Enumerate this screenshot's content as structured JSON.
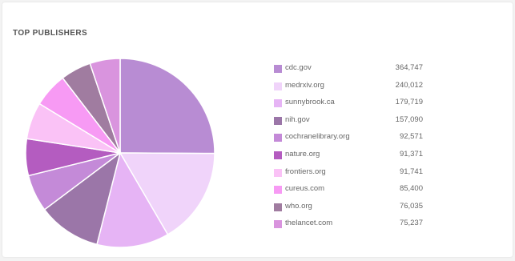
{
  "chart_data": {
    "type": "pie",
    "title": "TOP PUBLISHERS",
    "categories": [
      "cdc.gov",
      "medrxiv.org",
      "sunnybrook.ca",
      "nih.gov",
      "cochranelibrary.org",
      "nature.org",
      "frontiers.org",
      "cureus.com",
      "who.org",
      "thelancet.com"
    ],
    "legend_labels": [
      "cdc.gov",
      "medrxiv.org",
      "sunnybrook.ca",
      "nih.gov",
      "cochranelibrary.org",
      "nature.org",
      "frontiers.org",
      "cureus.com",
      "who.org",
      "thelancet.com"
    ],
    "value_labels": [
      "364,747",
      "240,012",
      "179,719",
      "157,090",
      "92,571",
      "91,371",
      "91,741",
      "85,400",
      "76,035",
      "75,237"
    ],
    "values": [
      364747,
      240012,
      179719,
      157090,
      92571,
      91371,
      91741,
      85400,
      76035,
      75237
    ],
    "colors": [
      "#b88cd3",
      "#f0d4fa",
      "#e6b4f5",
      "#9b76a8",
      "#c48ad8",
      "#b45cc0",
      "#fac2f6",
      "#f79af4",
      "#a07ca0",
      "#d994de"
    ],
    "legend_position": "right"
  }
}
